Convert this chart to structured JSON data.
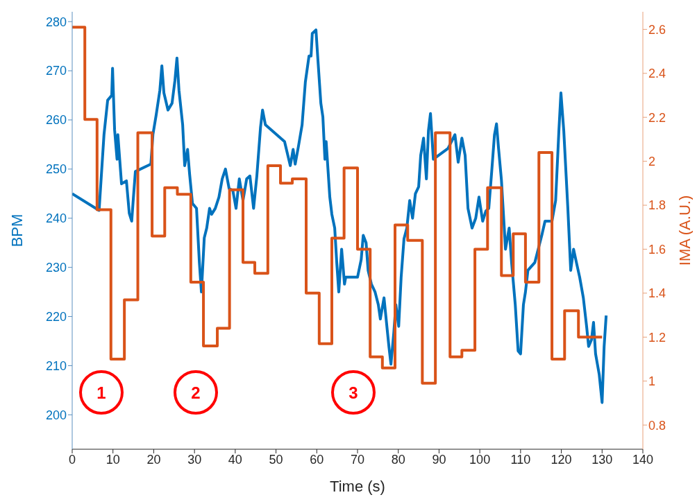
{
  "chart_data": {
    "type": "line",
    "xlabel": "Time (s)",
    "ylabel": "BPM",
    "y2label": "IMA (A.U.)",
    "xlim": [
      0,
      140
    ],
    "xticks": [
      0,
      10,
      20,
      30,
      40,
      50,
      60,
      70,
      80,
      90,
      100,
      110,
      120,
      130,
      140
    ],
    "ylim": [
      193,
      282
    ],
    "yticks": [
      200,
      210,
      220,
      230,
      240,
      250,
      260,
      270,
      280
    ],
    "y2lim": [
      0.69,
      2.68
    ],
    "y2ticks": [
      0.8,
      1,
      1.2,
      1.4,
      1.6,
      1.8,
      2,
      2.2,
      2.4,
      2.6
    ],
    "series": [
      {
        "type": "line",
        "color": "#0072bd",
        "x": [
          0,
          6.6,
          7.8,
          8.7,
          9.7,
          9.9,
          10.4,
          11,
          11.2,
          12.1,
          13.3,
          14,
          14.6,
          15,
          15.5,
          19.3,
          19.8,
          20.6,
          21.5,
          22,
          22.5,
          23.5,
          24.5,
          25.2,
          25.7,
          26.2,
          27.1,
          27.6,
          28.3,
          28.8,
          29.5,
          30.5,
          31.2,
          31.7,
          32.4,
          33,
          33.7,
          34.2,
          35.1,
          36,
          36.8,
          37.6,
          38.5,
          39.4,
          40.2,
          41,
          41.9,
          42.8,
          43.6,
          44.5,
          45.3,
          46.2,
          46.7,
          47.4,
          52.1,
          53.5,
          54.2,
          54.7,
          55.5,
          56.4,
          57.2,
          58.1,
          58.6,
          58.9,
          59.8,
          60.3,
          61,
          61.5,
          62,
          62.3,
          63.2,
          63.7,
          64.4,
          64.9,
          65.4,
          66.1,
          66.8,
          67.1,
          70,
          70.9,
          71.4,
          72.1,
          72.6,
          73.4,
          74.3,
          75.1,
          75.6,
          76.5,
          77.2,
          77.7,
          78.2,
          78.9,
          79.4,
          80.1,
          80.7,
          81.4,
          82.1,
          82.8,
          83.5,
          84.2,
          85,
          85.5,
          86.2,
          86.9,
          87.4,
          87.9,
          88.6,
          92.2,
          93.9,
          94.7,
          95.6,
          96.4,
          97.1,
          98.1,
          99,
          99.8,
          100.7,
          101.5,
          102.2,
          102.9,
          103.6,
          104.1,
          104.6,
          105.3,
          105.9,
          106.3,
          107.2,
          107.8,
          108.7,
          109.4,
          110,
          110.7,
          111.2,
          111.8,
          113.5,
          115.2,
          116,
          117.7,
          118.6,
          119.4,
          119.9,
          120.6,
          121.6,
          122.3,
          123,
          123.7,
          124.5,
          125.4,
          126.2,
          126.7,
          127.4,
          127.9,
          128.4,
          129.3,
          130,
          130.5,
          131
        ],
        "values": [
          245,
          241.6,
          257,
          264,
          265,
          270.5,
          258,
          252,
          257,
          247,
          247.6,
          241,
          239.4,
          244,
          249.5,
          251,
          257,
          261,
          266,
          271,
          265.5,
          262,
          263.4,
          268,
          272.6,
          266,
          259,
          250.7,
          254,
          249,
          243,
          242,
          231,
          225,
          236,
          238,
          242,
          240.8,
          242,
          244.3,
          248,
          250,
          246,
          245.7,
          242,
          248,
          243.6,
          248,
          248.6,
          242,
          248.6,
          258.5,
          262,
          259,
          255.6,
          250.7,
          254,
          251,
          254.6,
          259,
          267.7,
          273,
          273,
          277.6,
          278.3,
          272,
          263.4,
          260.6,
          252,
          255.6,
          244.3,
          240.8,
          238,
          231,
          225,
          233.7,
          226.6,
          228,
          228,
          231.6,
          236.5,
          235,
          229.4,
          226.6,
          225,
          222.4,
          219.5,
          223.8,
          218,
          213.9,
          210.3,
          216.7,
          222.4,
          218,
          228,
          235.8,
          238,
          243.6,
          240,
          245,
          246.4,
          252.8,
          256.3,
          248,
          257.8,
          261.3,
          252,
          254.2,
          257,
          251.4,
          256.3,
          252.8,
          242,
          238,
          240,
          244.3,
          239.4,
          241.5,
          242,
          249.3,
          257,
          259.2,
          254.2,
          247.8,
          239.4,
          233.7,
          238,
          231,
          222.4,
          213,
          212.4,
          222.4,
          225,
          229.4,
          231,
          236.5,
          239.4,
          239.4,
          243.6,
          257.8,
          265.5,
          257.8,
          242,
          229.4,
          233.7,
          231,
          228,
          223.8,
          218,
          213.9,
          215.3,
          218.8,
          212.4,
          208.2,
          202.5,
          213.9,
          220.2
        ]
      },
      {
        "type": "step",
        "axis": "y2",
        "color": "#d95319",
        "x": [
          0,
          3.1,
          6.1,
          9.5,
          12.8,
          16.1,
          19.6,
          22.7,
          25.8,
          29.1,
          32.2,
          35.6,
          38.6,
          41.9,
          44.8,
          48,
          51.1,
          54,
          57.4,
          60.6,
          63.7,
          66.7,
          70,
          73.1,
          76.1,
          79.2,
          82.3,
          85.9,
          89.1,
          92.7,
          95.6,
          98.8,
          101.9,
          105.3,
          108.2,
          111.2,
          114.5,
          117.7,
          120.8,
          124.2,
          130
        ],
        "values": [
          2.61,
          2.19,
          1.78,
          1.1,
          1.37,
          2.13,
          1.66,
          1.88,
          1.85,
          1.45,
          1.16,
          1.24,
          1.87,
          1.54,
          1.49,
          1.98,
          1.9,
          1.92,
          1.4,
          1.17,
          1.65,
          1.97,
          1.6,
          1.11,
          1.06,
          1.71,
          1.64,
          0.99,
          2.13,
          1.11,
          1.14,
          1.6,
          1.88,
          1.48,
          1.67,
          1.45,
          2.04,
          1.1,
          1.32,
          1.2,
          1.2
        ]
      }
    ],
    "annotations": [
      "1",
      "2",
      "3"
    ]
  }
}
